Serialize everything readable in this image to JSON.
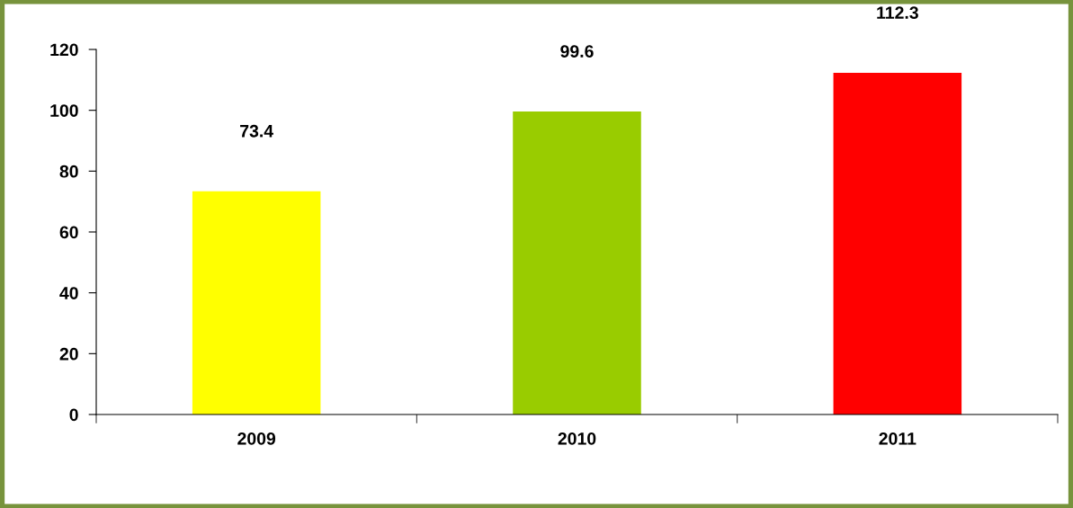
{
  "chart_data": {
    "type": "bar",
    "categories": [
      "2009",
      "2010",
      "2011"
    ],
    "values": [
      73.4,
      99.6,
      112.3
    ],
    "colors": [
      "#ffff00",
      "#99cc00",
      "#ff0000"
    ],
    "ylim": [
      0,
      120
    ],
    "yticks": [
      0,
      20,
      40,
      60,
      80,
      100,
      120
    ],
    "data_labels": true,
    "grid": false,
    "legend": false
  }
}
